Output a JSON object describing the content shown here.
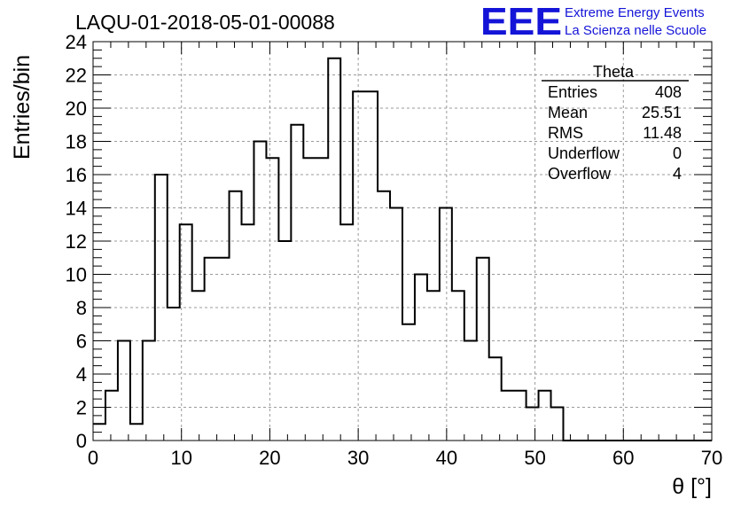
{
  "header": {
    "run_id": "LAQU-01-2018-05-01-00088",
    "logo_text": "EEE",
    "org_line1": "Extreme Energy Events",
    "org_line2": "La Scienza nelle Scuole"
  },
  "colors": {
    "logo": "#1414d8",
    "line": "#000000",
    "grid": "#9a9a9a"
  },
  "stats_box": {
    "title": "Theta",
    "rows": [
      {
        "label": "Entries",
        "value": "408"
      },
      {
        "label": "Mean",
        "value": "25.51"
      },
      {
        "label": "RMS",
        "value": "11.48"
      },
      {
        "label": "Underflow",
        "value": "0"
      },
      {
        "label": "Overflow",
        "value": "4"
      }
    ]
  },
  "chart_data": {
    "type": "histogram",
    "title": "LAQU-01-2018-05-01-00088",
    "xlabel": "θ [°]",
    "ylabel": "Entries/bin",
    "xlim": [
      0,
      70
    ],
    "ylim": [
      0,
      24
    ],
    "bin_width": 1.4,
    "grid": true,
    "x_ticks": [
      0,
      10,
      20,
      30,
      40,
      50,
      60,
      70
    ],
    "y_ticks": [
      0,
      2,
      4,
      6,
      8,
      10,
      12,
      14,
      16,
      18,
      20,
      22,
      24
    ],
    "bin_edges": [
      0,
      1.4,
      2.8,
      4.2,
      5.6,
      7.0,
      8.4,
      9.8,
      11.2,
      12.6,
      14.0,
      15.4,
      16.8,
      18.2,
      19.6,
      21.0,
      22.4,
      23.8,
      25.2,
      26.6,
      28.0,
      29.4,
      30.8,
      32.2,
      33.6,
      35.0,
      36.4,
      37.8,
      39.2,
      40.6,
      42.0,
      43.4,
      44.8,
      46.2,
      47.6,
      49.0,
      50.4,
      51.8,
      53.2,
      54.6,
      56.0,
      57.4,
      58.8,
      60.2,
      61.6,
      63.0,
      64.4,
      65.8,
      67.2,
      68.6,
      70.0
    ],
    "values": [
      1,
      3,
      6,
      1,
      6,
      16,
      8,
      13,
      9,
      11,
      11,
      15,
      13,
      18,
      17,
      12,
      19,
      17,
      17,
      23,
      13,
      21,
      21,
      15,
      14,
      7,
      10,
      9,
      14,
      9,
      6,
      11,
      5,
      3,
      3,
      2,
      3,
      2,
      0,
      0,
      0,
      0,
      0,
      0,
      0,
      0,
      0,
      0,
      0,
      0
    ]
  }
}
